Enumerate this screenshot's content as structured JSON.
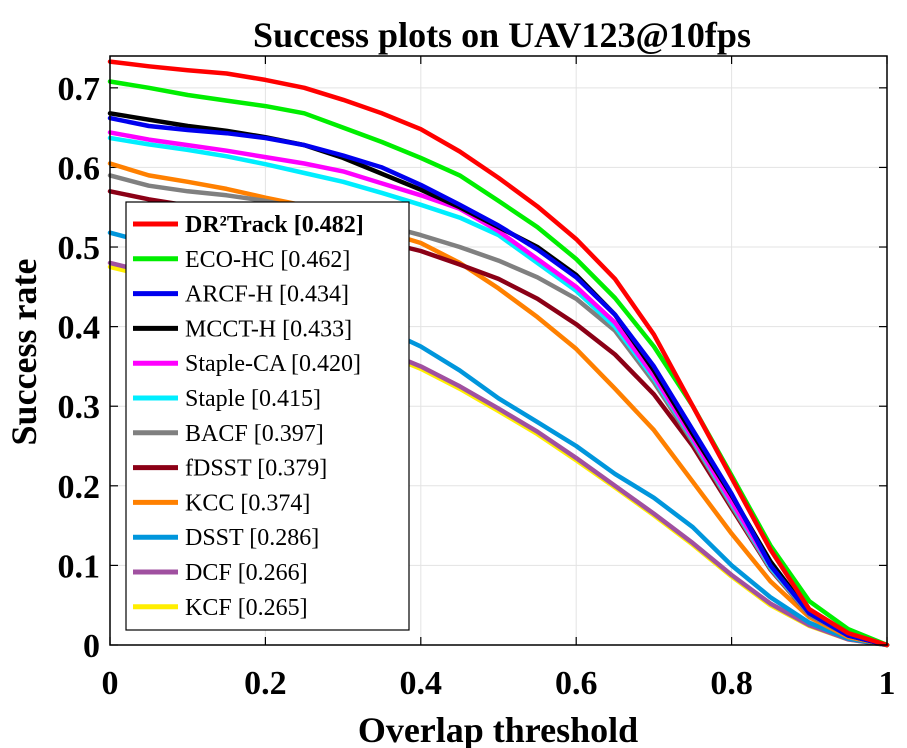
{
  "chart_data": {
    "type": "line",
    "title": "Success plots on UAV123@10fps",
    "xlabel": "Overlap threshold",
    "ylabel": "Success rate",
    "xlim": [
      0,
      1
    ],
    "ylim": [
      0,
      0.74
    ],
    "xticks": [
      "0",
      "0.2",
      "0.4",
      "0.6",
      "0.8",
      "1"
    ],
    "yticks": [
      "0",
      "0.1",
      "0.2",
      "0.3",
      "0.4",
      "0.5",
      "0.6",
      "0.7"
    ],
    "grid": true,
    "legend_position": "left",
    "x": [
      0,
      0.05,
      0.1,
      0.15,
      0.2,
      0.25,
      0.3,
      0.35,
      0.4,
      0.45,
      0.5,
      0.55,
      0.6,
      0.65,
      0.7,
      0.75,
      0.8,
      0.85,
      0.9,
      0.95,
      1.0
    ],
    "series": [
      {
        "name": "DR²Track [0.482]",
        "color": "#ff0000",
        "bold": true,
        "values": [
          0.733,
          0.727,
          0.722,
          0.718,
          0.71,
          0.7,
          0.685,
          0.668,
          0.648,
          0.62,
          0.587,
          0.551,
          0.51,
          0.46,
          0.39,
          0.3,
          0.21,
          0.12,
          0.045,
          0.015,
          0.0
        ]
      },
      {
        "name": "ECO-HC [0.462]",
        "color": "#00ee00",
        "bold": false,
        "values": [
          0.708,
          0.7,
          0.691,
          0.684,
          0.677,
          0.668,
          0.65,
          0.632,
          0.612,
          0.59,
          0.558,
          0.525,
          0.485,
          0.436,
          0.375,
          0.3,
          0.213,
          0.125,
          0.055,
          0.02,
          0.0
        ]
      },
      {
        "name": "ARCF-H [0.434]",
        "color": "#0000ee",
        "bold": false,
        "values": [
          0.662,
          0.652,
          0.647,
          0.643,
          0.637,
          0.628,
          0.615,
          0.6,
          0.578,
          0.553,
          0.527,
          0.497,
          0.462,
          0.415,
          0.35,
          0.27,
          0.19,
          0.1,
          0.04,
          0.012,
          0.0
        ]
      },
      {
        "name": "MCCT-H [0.433]",
        "color": "#000000",
        "bold": false,
        "values": [
          0.668,
          0.66,
          0.652,
          0.646,
          0.638,
          0.628,
          0.612,
          0.592,
          0.572,
          0.55,
          0.525,
          0.5,
          0.465,
          0.415,
          0.345,
          0.265,
          0.188,
          0.105,
          0.04,
          0.012,
          0.0
        ]
      },
      {
        "name": "Staple-CA [0.420]",
        "color": "#ff00ff",
        "bold": false,
        "values": [
          0.644,
          0.635,
          0.628,
          0.621,
          0.613,
          0.605,
          0.595,
          0.58,
          0.565,
          0.548,
          0.52,
          0.485,
          0.45,
          0.405,
          0.338,
          0.26,
          0.18,
          0.1,
          0.04,
          0.012,
          0.0
        ]
      },
      {
        "name": "Staple [0.415]",
        "color": "#00eeff",
        "bold": false,
        "values": [
          0.637,
          0.629,
          0.622,
          0.614,
          0.604,
          0.593,
          0.582,
          0.568,
          0.553,
          0.537,
          0.515,
          0.48,
          0.445,
          0.4,
          0.335,
          0.258,
          0.178,
          0.098,
          0.04,
          0.012,
          0.0
        ]
      },
      {
        "name": "BACF [0.397]",
        "color": "#808080",
        "bold": false,
        "values": [
          0.59,
          0.577,
          0.57,
          0.565,
          0.558,
          0.548,
          0.54,
          0.528,
          0.515,
          0.5,
          0.483,
          0.462,
          0.435,
          0.395,
          0.33,
          0.255,
          0.175,
          0.096,
          0.038,
          0.012,
          0.0
        ]
      },
      {
        "name": "fDSST [0.379]",
        "color": "#8b0016",
        "bold": false,
        "values": [
          0.57,
          0.56,
          0.552,
          0.546,
          0.54,
          0.532,
          0.52,
          0.507,
          0.495,
          0.478,
          0.46,
          0.435,
          0.403,
          0.365,
          0.315,
          0.25,
          0.172,
          0.095,
          0.038,
          0.012,
          0.0
        ]
      },
      {
        "name": "KCC [0.374]",
        "color": "#ff8000",
        "bold": false,
        "values": [
          0.605,
          0.59,
          0.582,
          0.573,
          0.562,
          0.552,
          0.538,
          0.52,
          0.505,
          0.48,
          0.448,
          0.412,
          0.372,
          0.322,
          0.27,
          0.205,
          0.14,
          0.08,
          0.035,
          0.01,
          0.0
        ]
      },
      {
        "name": "DSST [0.286]",
        "color": "#0096dc",
        "bold": false,
        "values": [
          0.518,
          0.505,
          0.49,
          0.475,
          0.455,
          0.44,
          0.417,
          0.398,
          0.375,
          0.345,
          0.31,
          0.28,
          0.25,
          0.215,
          0.185,
          0.148,
          0.1,
          0.06,
          0.028,
          0.008,
          0.0
        ]
      },
      {
        "name": "DCF [0.266]",
        "color": "#a050a0",
        "bold": false,
        "values": [
          0.48,
          0.468,
          0.455,
          0.44,
          0.425,
          0.408,
          0.39,
          0.37,
          0.35,
          0.325,
          0.297,
          0.268,
          0.235,
          0.2,
          0.165,
          0.128,
          0.088,
          0.052,
          0.025,
          0.007,
          0.0
        ]
      },
      {
        "name": "KCF [0.265]",
        "color": "#ffee00",
        "bold": false,
        "values": [
          0.475,
          0.463,
          0.451,
          0.437,
          0.422,
          0.405,
          0.387,
          0.367,
          0.347,
          0.322,
          0.294,
          0.265,
          0.232,
          0.198,
          0.163,
          0.126,
          0.086,
          0.05,
          0.024,
          0.007,
          0.0
        ]
      }
    ]
  }
}
